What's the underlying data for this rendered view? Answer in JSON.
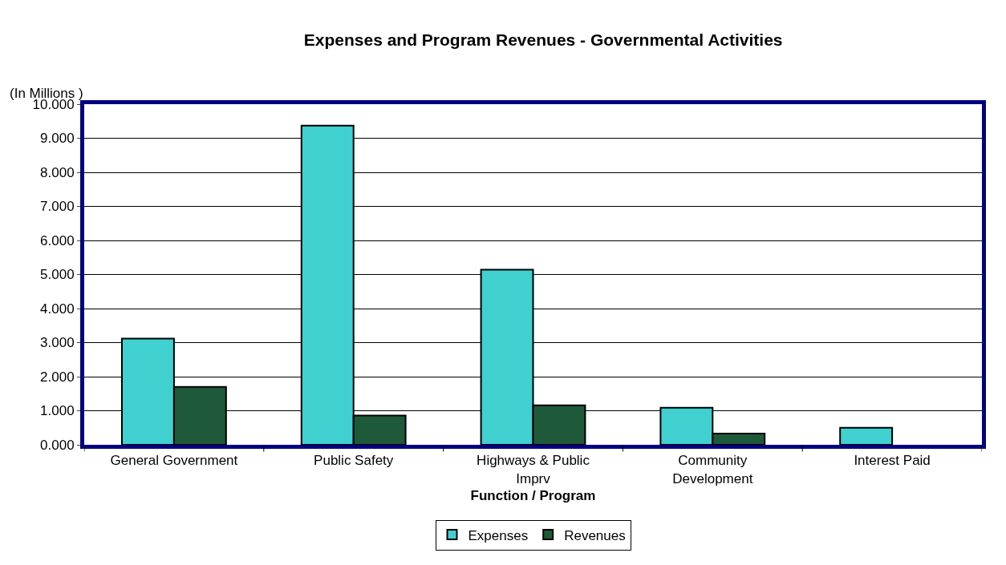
{
  "chart_data": {
    "type": "bar",
    "title": "Expenses and Program Revenues - Governmental Activities",
    "ylabel": "(In Millions )",
    "xlabel": "Function / Program",
    "categories": [
      "General Government",
      "Public Safety",
      "Highways & Public Imprv",
      "Community Development",
      "Interest Paid"
    ],
    "series": [
      {
        "name": "Expenses",
        "color": "#40d0d0",
        "values": [
          3.12,
          9.37,
          5.14,
          1.09,
          0.5
        ]
      },
      {
        "name": "Revenues",
        "color": "#1e5a3a",
        "values": [
          1.7,
          0.86,
          1.16,
          0.33,
          null
        ]
      }
    ],
    "ylim": [
      0,
      10
    ],
    "yticks": [
      {
        "value": 0,
        "label": "0.000"
      },
      {
        "value": 1,
        "label": "1.000"
      },
      {
        "value": 2,
        "label": "2.000"
      },
      {
        "value": 3,
        "label": "3.000"
      },
      {
        "value": 4,
        "label": "4.000"
      },
      {
        "value": 5,
        "label": "5.000"
      },
      {
        "value": 6,
        "label": "6.000"
      },
      {
        "value": 7,
        "label": "7.000"
      },
      {
        "value": 8,
        "label": "8.000"
      },
      {
        "value": 9,
        "label": "9.000"
      },
      {
        "value": 10,
        "label": "10.000"
      }
    ],
    "grid": "y",
    "legend": "bottom"
  }
}
